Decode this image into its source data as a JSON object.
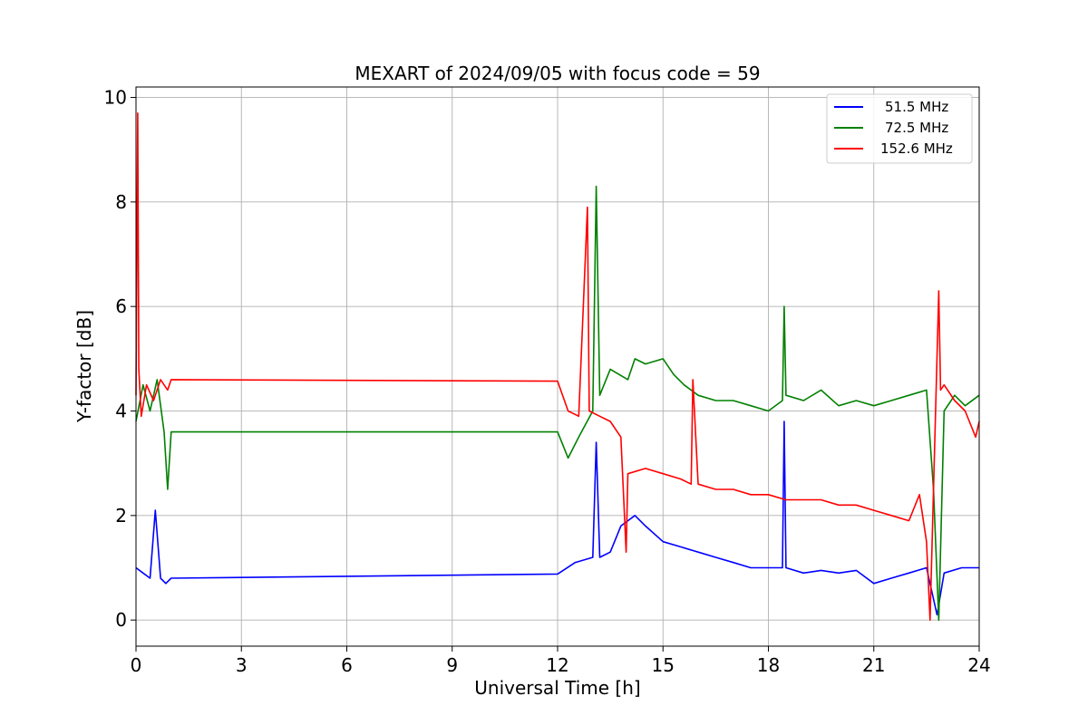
{
  "chart_data": {
    "type": "line",
    "title": "MEXART of 2024/09/05 with focus code = 59",
    "xlabel": "Universal Time [h]",
    "ylabel": "Y-factor [dB]",
    "xlim": [
      0,
      24
    ],
    "ylim": [
      -0.5,
      10.2
    ],
    "xticks": [
      0,
      3,
      6,
      9,
      12,
      15,
      18,
      21,
      24
    ],
    "yticks": [
      0,
      2,
      4,
      6,
      8,
      10
    ],
    "grid": true,
    "legend_position": "top-right",
    "series": [
      {
        "name": "51.5 MHz",
        "color": "#0000ff",
        "x": [
          0.0,
          0.2,
          0.4,
          0.55,
          0.7,
          0.85,
          1.0,
          12.0,
          12.5,
          13.0,
          13.1,
          13.2,
          13.5,
          13.8,
          14.0,
          14.2,
          14.5,
          15.0,
          15.5,
          16.0,
          16.5,
          17.0,
          17.5,
          18.0,
          18.4,
          18.45,
          18.5,
          19.0,
          19.5,
          20.0,
          20.5,
          21.0,
          21.5,
          22.0,
          22.5,
          22.8,
          23.0,
          23.5,
          24.0
        ],
        "y": [
          1.0,
          0.9,
          0.8,
          2.1,
          0.8,
          0.7,
          0.8,
          0.88,
          1.1,
          1.2,
          3.4,
          1.2,
          1.3,
          1.8,
          1.9,
          2.0,
          1.8,
          1.5,
          1.4,
          1.3,
          1.2,
          1.1,
          1.0,
          1.0,
          1.0,
          3.8,
          1.0,
          0.9,
          0.95,
          0.9,
          0.95,
          0.7,
          0.8,
          0.9,
          1.0,
          0.1,
          0.9,
          1.0,
          1.0
        ]
      },
      {
        "name": "72.5 MHz",
        "color": "#008000",
        "x": [
          0.0,
          0.2,
          0.4,
          0.6,
          0.8,
          0.9,
          1.0,
          12.0,
          12.3,
          12.6,
          13.0,
          13.1,
          13.2,
          13.5,
          14.0,
          14.2,
          14.5,
          15.0,
          15.3,
          15.6,
          16.0,
          16.5,
          17.0,
          17.5,
          18.0,
          18.4,
          18.45,
          18.5,
          19.0,
          19.5,
          20.0,
          20.5,
          21.0,
          21.5,
          22.0,
          22.5,
          22.7,
          22.85,
          23.0,
          23.3,
          23.6,
          24.0
        ],
        "y": [
          3.8,
          4.5,
          4.0,
          4.6,
          3.6,
          2.5,
          3.6,
          3.6,
          3.1,
          3.5,
          4.0,
          8.3,
          4.3,
          4.8,
          4.6,
          5.0,
          4.9,
          5.0,
          4.7,
          4.5,
          4.3,
          4.2,
          4.2,
          4.1,
          4.0,
          4.2,
          6.0,
          4.3,
          4.2,
          4.4,
          4.1,
          4.2,
          4.1,
          4.2,
          4.3,
          4.4,
          2.5,
          0.0,
          4.0,
          4.3,
          4.1,
          4.3
        ]
      },
      {
        "name": "152.6 MHz",
        "color": "#ff0000",
        "x": [
          0.0,
          0.05,
          0.08,
          0.15,
          0.3,
          0.5,
          0.7,
          0.9,
          1.0,
          12.0,
          12.3,
          12.6,
          12.85,
          12.9,
          13.2,
          13.5,
          13.8,
          13.95,
          14.0,
          14.5,
          15.0,
          15.5,
          15.8,
          15.85,
          16.0,
          16.5,
          17.0,
          17.5,
          18.0,
          18.5,
          19.0,
          19.5,
          20.0,
          20.5,
          21.0,
          21.5,
          22.0,
          22.3,
          22.5,
          22.6,
          22.85,
          22.9,
          23.0,
          23.3,
          23.6,
          23.9,
          24.0
        ],
        "y": [
          4.3,
          9.7,
          4.8,
          3.9,
          4.5,
          4.2,
          4.6,
          4.4,
          4.6,
          4.57,
          4.0,
          3.9,
          7.9,
          4.0,
          3.9,
          3.8,
          3.5,
          1.3,
          2.8,
          2.9,
          2.8,
          2.7,
          2.6,
          4.6,
          2.6,
          2.5,
          2.5,
          2.4,
          2.4,
          2.3,
          2.3,
          2.3,
          2.2,
          2.2,
          2.1,
          2.0,
          1.9,
          2.4,
          1.5,
          0.0,
          6.3,
          4.4,
          4.5,
          4.2,
          4.0,
          3.5,
          3.8
        ]
      }
    ]
  }
}
